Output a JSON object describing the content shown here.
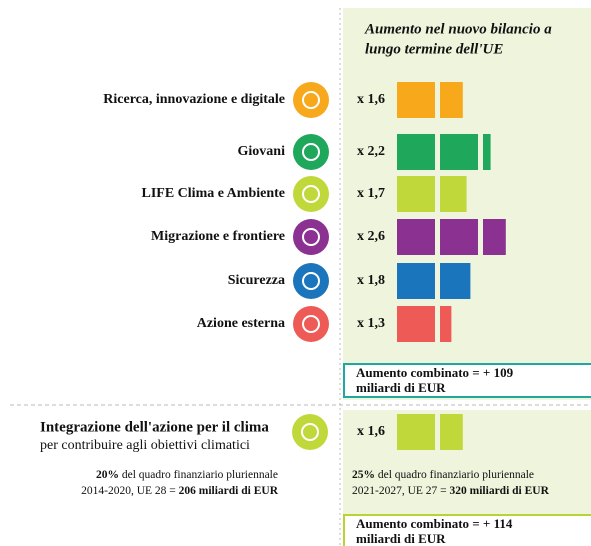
{
  "chart_data": {
    "type": "multiplier-bar",
    "title": [
      "Aumento nel nuovo bilancio a",
      "lungo termine dell'UE"
    ],
    "categories": [
      "Ricerca, innovazione e digitale",
      "Giovani",
      "LIFE Clima e Ambiente",
      "Migrazione e frontiere",
      "Sicurezza",
      "Azione esterna"
    ],
    "values": [
      1.6,
      2.2,
      1.7,
      2.6,
      1.8,
      1.3
    ],
    "value_labels": [
      "x 1,6",
      "x 2,2",
      "x 1,7",
      "x 2,6",
      "x 1,8",
      "x 1,3"
    ],
    "colors": [
      "#f7a81b",
      "#1fa85b",
      "#c1d83a",
      "#8a3192",
      "#1b75bc",
      "#ee5b57"
    ]
  },
  "combined_1": [
    "Aumento combinato = + 109",
    "miliardi di EUR"
  ],
  "climate": {
    "title": "Integrazione dell'azione per il clima",
    "subtitle": "per contribuire agli obiettivi climatici",
    "value": 1.6,
    "value_label": "x 1,6",
    "color": "#c1d83a",
    "before": [
      [
        "20%",
        " del quadro finanziario pluriennale"
      ],
      [
        "2014-2020, UE 28 = ",
        "206 miliardi di EUR"
      ]
    ],
    "after": [
      [
        "25%",
        " del quadro finanziario pluriennale"
      ],
      [
        "2021-2027, UE 27 = ",
        "320 miliardi di EUR"
      ]
    ]
  },
  "combined_2": [
    "Aumento combinato = + 114",
    "miliardi di EUR"
  ]
}
